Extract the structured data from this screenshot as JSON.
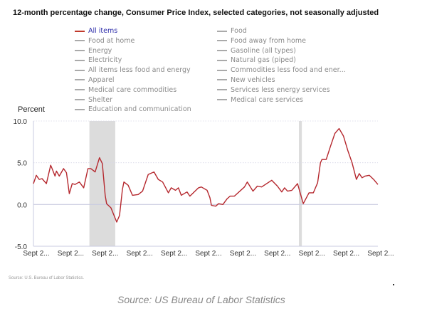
{
  "chart_data": {
    "type": "line",
    "title": "12-month percentage change, Consumer Price Index, selected categories, not seasonally adjusted",
    "ylabel": "Percent",
    "xlabel": "",
    "ylim": [
      -5,
      10
    ],
    "xlim": [
      "2004-09",
      "2024-09"
    ],
    "yticks": [
      "10.0",
      "5.0",
      "0.0",
      "-5.0"
    ],
    "ytick_values": [
      10,
      5,
      0,
      -5
    ],
    "xticks": [
      "Sept 2...",
      "Sept 2...",
      "Sept 2...",
      "Sept 2...",
      "Sept 2...",
      "Sept 2...",
      "Sept 2...",
      "Sept 2...",
      "Sept 2...",
      "Sept 2...",
      "Sept 2..."
    ],
    "xtick_dates": [
      "2004-09",
      "2006-09",
      "2008-09",
      "2010-09",
      "2012-09",
      "2014-09",
      "2016-09",
      "2018-09",
      "2020-09",
      "2022-09",
      "2024-09"
    ],
    "grid": "horizontal dotted",
    "legend_position": "top",
    "legend": {
      "col1": [
        "All items",
        "Food at home",
        "Energy",
        "Electricity",
        "All items less food and energy",
        "Apparel",
        "Medical care commodities",
        "Shelter",
        "Education and communication"
      ],
      "col2": [
        "Food",
        "Food away from home",
        "Gasoline (all types)",
        "Natural gas (piped)",
        "Commodities less food and ener...",
        "New vehicles",
        "Services less energy services",
        "Medical care services"
      ]
    },
    "recession_shading": [
      [
        "2007-12",
        "2009-06"
      ],
      [
        "2020-02",
        "2020-04"
      ]
    ],
    "series": [
      {
        "name": "All items",
        "color": "#b5282e",
        "x": [
          "2004-09",
          "2004-11",
          "2005-01",
          "2005-03",
          "2005-06",
          "2005-09",
          "2005-10",
          "2005-12",
          "2006-01",
          "2006-03",
          "2006-06",
          "2006-08",
          "2006-10",
          "2006-12",
          "2007-02",
          "2007-05",
          "2007-08",
          "2007-11",
          "2008-01",
          "2008-04",
          "2008-07",
          "2008-09",
          "2008-11",
          "2008-12",
          "2009-03",
          "2009-07",
          "2009-09",
          "2009-11",
          "2009-12",
          "2010-03",
          "2010-06",
          "2010-10",
          "2011-01",
          "2011-05",
          "2011-09",
          "2011-12",
          "2012-03",
          "2012-07",
          "2012-09",
          "2012-12",
          "2013-02",
          "2013-04",
          "2013-08",
          "2013-10",
          "2014-04",
          "2014-06",
          "2014-10",
          "2014-12",
          "2015-01",
          "2015-04",
          "2015-06",
          "2015-09",
          "2015-12",
          "2016-02",
          "2016-05",
          "2016-12",
          "2017-02",
          "2017-06",
          "2017-09",
          "2017-12",
          "2018-07",
          "2018-11",
          "2019-02",
          "2019-04",
          "2019-06",
          "2019-09",
          "2020-01",
          "2020-05",
          "2020-09",
          "2020-12",
          "2021-03",
          "2021-05",
          "2021-06",
          "2021-09",
          "2021-12",
          "2022-03",
          "2022-06",
          "2022-09",
          "2022-12",
          "2023-03",
          "2023-06",
          "2023-08",
          "2023-10",
          "2023-12",
          "2024-03",
          "2024-06",
          "2024-09"
        ],
        "y": [
          2.5,
          3.5,
          3.0,
          3.1,
          2.5,
          4.7,
          4.3,
          3.4,
          4.0,
          3.4,
          4.3,
          3.8,
          1.3,
          2.5,
          2.4,
          2.7,
          2.0,
          4.3,
          4.3,
          3.9,
          5.6,
          4.9,
          1.1,
          0.1,
          -0.4,
          -2.1,
          -1.3,
          1.8,
          2.7,
          2.3,
          1.1,
          1.2,
          1.6,
          3.6,
          3.9,
          3.0,
          2.7,
          1.4,
          2.0,
          1.7,
          2.0,
          1.1,
          1.5,
          1.0,
          2.0,
          2.1,
          1.7,
          0.8,
          -0.1,
          -0.2,
          0.1,
          0.0,
          0.7,
          1.0,
          1.0,
          2.1,
          2.7,
          1.6,
          2.2,
          2.1,
          2.9,
          2.2,
          1.5,
          2.0,
          1.6,
          1.7,
          2.5,
          0.1,
          1.4,
          1.4,
          2.6,
          5.0,
          5.4,
          5.4,
          7.0,
          8.5,
          9.1,
          8.2,
          6.5,
          5.0,
          3.0,
          3.7,
          3.2,
          3.4,
          3.5,
          3.0,
          2.4
        ]
      }
    ]
  },
  "footer": {
    "source_small": "Source: U.S. Bureau of Labor Statistics.",
    "caption": "Source: US Bureau of Labor Statistics"
  }
}
